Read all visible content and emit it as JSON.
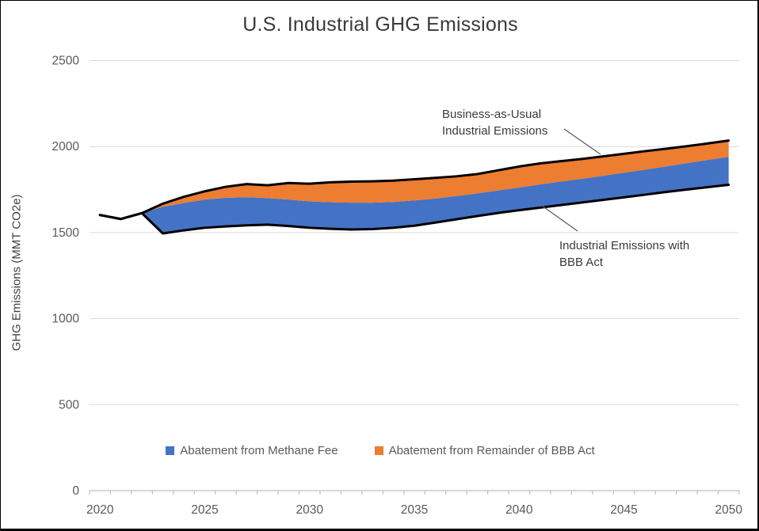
{
  "title": "U.S. Industrial GHG Emissions",
  "y_axis": {
    "title": "GHG Emissions (MMT CO2e)",
    "tick_labels": [
      "0",
      "500",
      "1000",
      "1500",
      "2000",
      "2500"
    ]
  },
  "x_axis": {
    "tick_labels": [
      "2020",
      "2025",
      "2030",
      "2035",
      "2040",
      "2045",
      "2050"
    ]
  },
  "legend": {
    "items": [
      {
        "label": "Abatement from Methane Fee",
        "color": "#4472C4"
      },
      {
        "label": "Abatement from Remainder of BBB Act",
        "color": "#ED7D31"
      }
    ]
  },
  "annotations": {
    "bau": {
      "line1": "Business-as-Usual",
      "line2": "Industrial Emissions"
    },
    "bbb": {
      "line1": "Industrial Emissions with",
      "line2": "BBB Act"
    }
  },
  "colors": {
    "methane_fee_band": "#4472C4",
    "bbb_remainder_band": "#ED7D31",
    "emission_lines": "#000000",
    "gridline": "#D9D9D9",
    "axis_line": "#BFBFBF",
    "tick_label": "#595959",
    "leader_line": "#595959"
  },
  "chart_data": {
    "type": "area",
    "title": "U.S. Industrial GHG Emissions",
    "xlabel": "",
    "ylabel": "GHG Emissions (MMT CO2e)",
    "unit": "MMT CO2e",
    "ylim": [
      0,
      2500
    ],
    "y_tick_step": 500,
    "xlim": [
      2020,
      2050
    ],
    "grid": "horizontal",
    "legend_position": "bottom",
    "x": [
      2020,
      2021,
      2022,
      2023,
      2024,
      2025,
      2026,
      2027,
      2028,
      2029,
      2030,
      2031,
      2032,
      2033,
      2034,
      2035,
      2036,
      2037,
      2038,
      2039,
      2040,
      2041,
      2042,
      2043,
      2044,
      2045,
      2046,
      2047,
      2048,
      2049,
      2050
    ],
    "series": [
      {
        "name": "Business-as-Usual Industrial Emissions",
        "style": "black line (top of orange band)",
        "values": [
          1602,
          1579,
          1613,
          1668,
          1708,
          1740,
          1766,
          1782,
          1775,
          1788,
          1784,
          1792,
          1796,
          1798,
          1802,
          1810,
          1818,
          1827,
          1840,
          1862,
          1884,
          1902,
          1915,
          1928,
          1943,
          1958,
          1973,
          1987,
          2002,
          2018,
          2035
        ]
      },
      {
        "name": "Emissions with BBB Act excluding Methane Fee (blue/orange band boundary)",
        "style": "fill boundary, no stroke",
        "values": [
          1602,
          1579,
          1613,
          1650,
          1672,
          1692,
          1702,
          1706,
          1700,
          1692,
          1681,
          1676,
          1674,
          1674,
          1678,
          1687,
          1698,
          1712,
          1728,
          1745,
          1762,
          1780,
          1797,
          1813,
          1830,
          1848,
          1866,
          1884,
          1903,
          1922,
          1940
        ]
      },
      {
        "name": "Industrial Emissions with BBB Act",
        "style": "black line (bottom of blue band)",
        "values": [
          1602,
          1579,
          1613,
          1495,
          1513,
          1528,
          1536,
          1542,
          1546,
          1538,
          1528,
          1522,
          1518,
          1520,
          1528,
          1540,
          1558,
          1577,
          1596,
          1614,
          1630,
          1645,
          1660,
          1675,
          1690,
          1705,
          1720,
          1736,
          1750,
          1764,
          1778
        ]
      }
    ],
    "bands": [
      {
        "label": "Abatement from Methane Fee",
        "color": "#4472C4",
        "upper_series": 1,
        "lower_series": 2,
        "starts_at_x": 2022
      },
      {
        "label": "Abatement from Remainder of BBB Act",
        "color": "#ED7D31",
        "upper_series": 0,
        "lower_series": 1,
        "starts_at_x": 2022
      }
    ]
  }
}
